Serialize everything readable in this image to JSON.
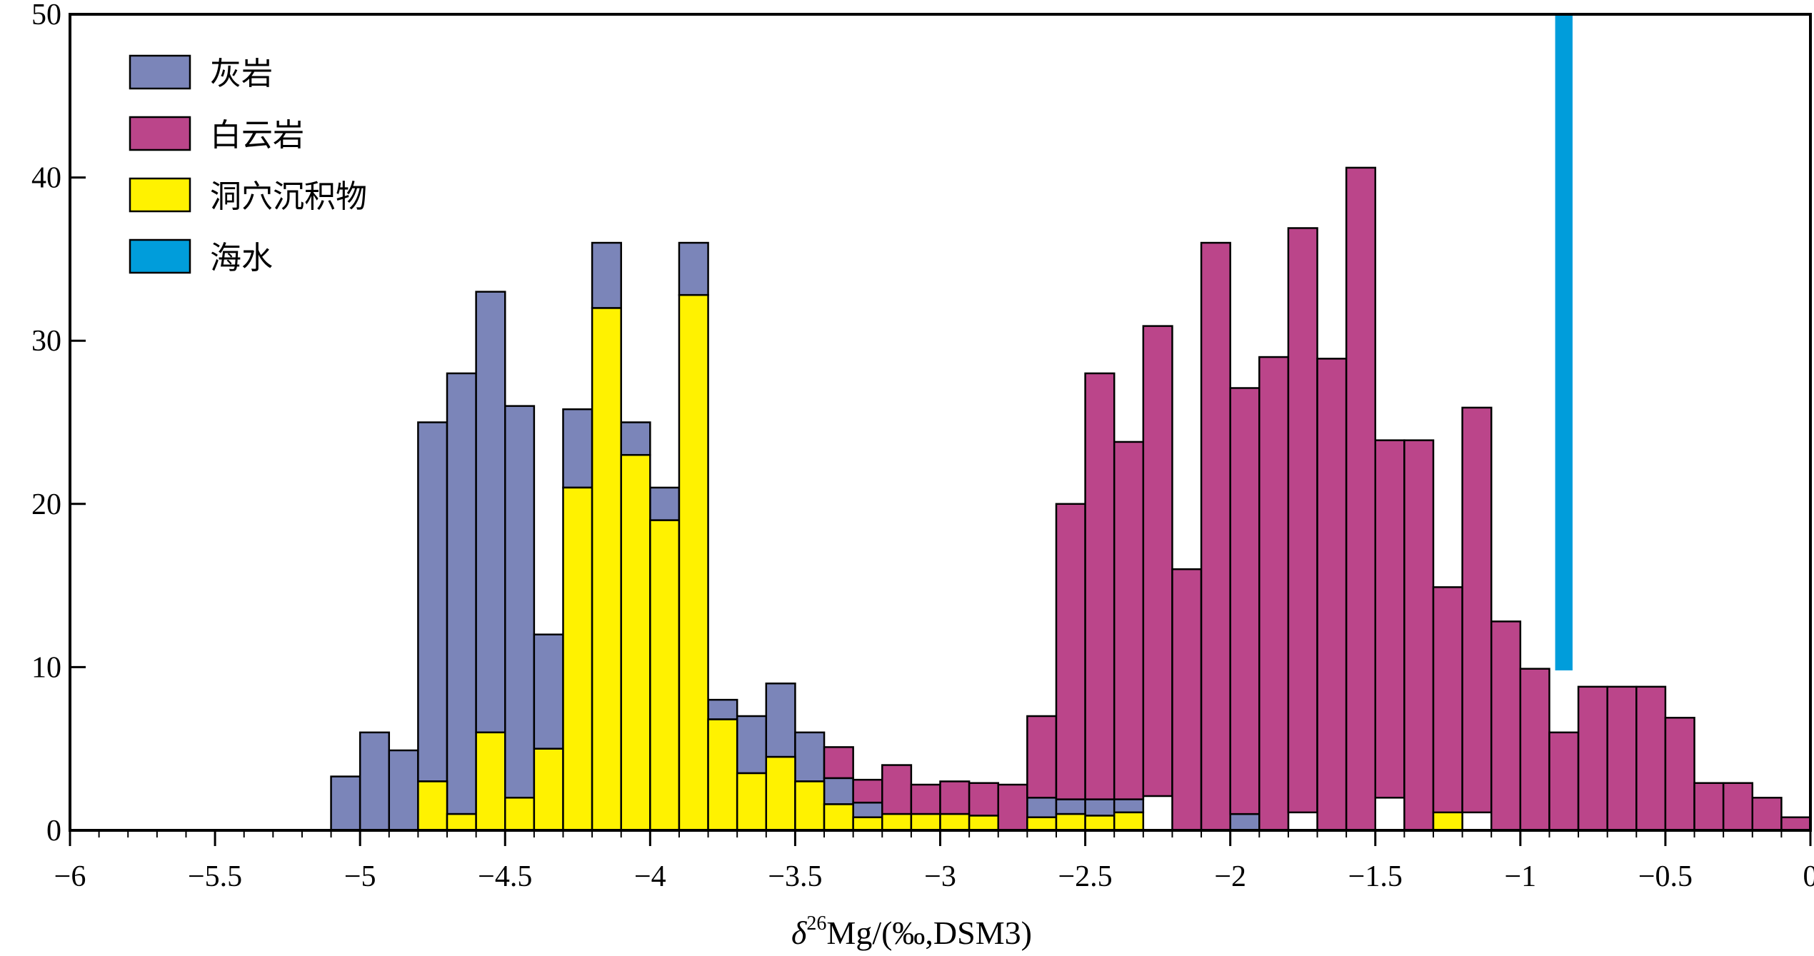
{
  "chart_data": {
    "type": "bar",
    "stacked": true,
    "bin_width": 0.1,
    "xlim": [
      -6,
      0
    ],
    "ylim": [
      0,
      50
    ],
    "x_ticks": [
      -6,
      -5.5,
      -5,
      -4.5,
      -4,
      -3.5,
      -3,
      -2.5,
      -2,
      -1.5,
      -1,
      -0.5,
      0
    ],
    "x_tick_labels": [
      "−6",
      "−5.5",
      "−5",
      "−4.5",
      "−4",
      "−3.5",
      "−3",
      "−2.5",
      "−2",
      "−1.5",
      "−1",
      "−0.5",
      "0"
    ],
    "y_ticks": [
      0,
      10,
      20,
      30,
      40,
      50
    ],
    "y_tick_labels": [
      "0",
      "10",
      "20",
      "30",
      "40",
      "50"
    ],
    "x_axis_title_delta": "δ",
    "x_axis_title_sup": "26",
    "x_axis_title_rest": "Mg/(‰,DSM3)",
    "legend_placement": "top-left",
    "series": [
      {
        "name": "灰岩",
        "color": "#7b85b9",
        "bins": [
          {
            "x0": -5.1,
            "y0": 0,
            "y1": 3.3
          },
          {
            "x0": -5.0,
            "y0": 0,
            "y1": 6
          },
          {
            "x0": -4.9,
            "y0": 0,
            "y1": 4.9
          },
          {
            "x0": -4.8,
            "y0": 3,
            "y1": 25
          },
          {
            "x0": -4.7,
            "y0": 1,
            "y1": 28
          },
          {
            "x0": -4.6,
            "y0": 6,
            "y1": 33
          },
          {
            "x0": -4.5,
            "y0": 2,
            "y1": 26
          },
          {
            "x0": -4.4,
            "y0": 5,
            "y1": 12
          },
          {
            "x0": -4.3,
            "y0": 21,
            "y1": 25.8
          },
          {
            "x0": -4.2,
            "y0": 32,
            "y1": 36
          },
          {
            "x0": -4.1,
            "y0": 23,
            "y1": 25
          },
          {
            "x0": -4.0,
            "y0": 19,
            "y1": 21
          },
          {
            "x0": -3.9,
            "y0": 32.8,
            "y1": 36
          },
          {
            "x0": -3.8,
            "y0": 6.8,
            "y1": 8
          },
          {
            "x0": -3.7,
            "y0": 3.5,
            "y1": 7
          },
          {
            "x0": -3.6,
            "y0": 4.5,
            "y1": 9
          },
          {
            "x0": -3.5,
            "y0": 3,
            "y1": 6
          },
          {
            "x0": -3.4,
            "y0": 1.6,
            "y1": 3.2
          },
          {
            "x0": -3.3,
            "y0": 0.8,
            "y1": 1.7
          },
          {
            "x0": -2.7,
            "y0": 0.8,
            "y1": 2
          },
          {
            "x0": -2.6,
            "y0": 1,
            "y1": 1.9
          },
          {
            "x0": -2.5,
            "y0": 0.9,
            "y1": 1.9
          },
          {
            "x0": -2.4,
            "y0": 1.1,
            "y1": 2.1
          },
          {
            "x0": -2.0,
            "y0": 0,
            "y1": 1
          },
          {
            "x0": -1.9,
            "y0": 0,
            "y1": 1.1
          },
          {
            "x0": -1.6,
            "y0": 0,
            "y1": 2
          }
        ]
      },
      {
        "name": "白云岩",
        "color": "#bb458a",
        "bins": [
          {
            "x0": -3.4,
            "y0": 3.2,
            "y1": 5.1
          },
          {
            "x0": -3.3,
            "y0": 1.7,
            "y1": 3.1
          },
          {
            "x0": -3.2,
            "y0": 1,
            "y1": 4
          },
          {
            "x0": -3.1,
            "y0": 1,
            "y1": 2.8
          },
          {
            "x0": -3.0,
            "y0": 1,
            "y1": 3
          },
          {
            "x0": -2.9,
            "y0": 0.9,
            "y1": 2.9
          },
          {
            "x0": -2.8,
            "y0": 0,
            "y1": 2.8
          },
          {
            "x0": -2.7,
            "y0": 2,
            "y1": 7
          },
          {
            "x0": -2.6,
            "y0": 1.9,
            "y1": 20
          },
          {
            "x0": -2.5,
            "y0": 1.9,
            "y1": 28
          },
          {
            "x0": -2.4,
            "y0": 1.9,
            "y1": 23.8
          },
          {
            "x0": -2.3,
            "y0": 2.1,
            "y1": 30.9
          },
          {
            "x0": -2.2,
            "y0": 0,
            "y1": 16
          },
          {
            "x0": -2.1,
            "y0": 0,
            "y1": 36
          },
          {
            "x0": -2.0,
            "y0": 1,
            "y1": 27.1
          },
          {
            "x0": -1.9,
            "y0": 0,
            "y1": 29
          },
          {
            "x0": -1.8,
            "y0": 1.1,
            "y1": 36.9
          },
          {
            "x0": -1.7,
            "y0": 0,
            "y1": 28.9
          },
          {
            "x0": -1.6,
            "y0": 0,
            "y1": 40.6
          },
          {
            "x0": -1.5,
            "y0": 2,
            "y1": 23.9
          },
          {
            "x0": -1.4,
            "y0": 0,
            "y1": 23.9
          },
          {
            "x0": -1.3,
            "y0": 0,
            "y1": 14.9
          },
          {
            "x0": -1.2,
            "y0": 1.1,
            "y1": 25.9
          },
          {
            "x0": -1.1,
            "y0": 0,
            "y1": 12.8
          },
          {
            "x0": -1.0,
            "y0": 0,
            "y1": 9.9
          },
          {
            "x0": -0.9,
            "y0": 0,
            "y1": 6
          },
          {
            "x0": -0.8,
            "y0": 0,
            "y1": 8.8
          },
          {
            "x0": -0.7,
            "y0": 0,
            "y1": 8.8
          },
          {
            "x0": -0.6,
            "y0": 0,
            "y1": 8.8
          },
          {
            "x0": -0.5,
            "y0": 0,
            "y1": 6.9
          },
          {
            "x0": -0.4,
            "y0": 0,
            "y1": 2.9
          },
          {
            "x0": -0.3,
            "y0": 0,
            "y1": 2.9
          },
          {
            "x0": -0.2,
            "y0": 0,
            "y1": 2
          },
          {
            "x0": -0.1,
            "y0": 0,
            "y1": 0.8
          }
        ]
      },
      {
        "name": "洞穴沉积物",
        "color": "#fff200",
        "bins": [
          {
            "x0": -4.8,
            "y0": 0,
            "y1": 3
          },
          {
            "x0": -4.7,
            "y0": 0,
            "y1": 1
          },
          {
            "x0": -4.6,
            "y0": 0,
            "y1": 6
          },
          {
            "x0": -4.5,
            "y0": 0,
            "y1": 2
          },
          {
            "x0": -4.4,
            "y0": 0,
            "y1": 5
          },
          {
            "x0": -4.3,
            "y0": 0,
            "y1": 21
          },
          {
            "x0": -4.2,
            "y0": 0,
            "y1": 32
          },
          {
            "x0": -4.1,
            "y0": 0,
            "y1": 23
          },
          {
            "x0": -4.0,
            "y0": 0,
            "y1": 19
          },
          {
            "x0": -3.9,
            "y0": 0,
            "y1": 32.8
          },
          {
            "x0": -3.8,
            "y0": 0,
            "y1": 6.8
          },
          {
            "x0": -3.7,
            "y0": 0,
            "y1": 3.5
          },
          {
            "x0": -3.6,
            "y0": 0,
            "y1": 4.5
          },
          {
            "x0": -3.5,
            "y0": 0,
            "y1": 3
          },
          {
            "x0": -3.4,
            "y0": 0,
            "y1": 1.6
          },
          {
            "x0": -3.3,
            "y0": 0,
            "y1": 0.8
          },
          {
            "x0": -3.2,
            "y0": 0,
            "y1": 1
          },
          {
            "x0": -3.1,
            "y0": 0,
            "y1": 1
          },
          {
            "x0": -3.0,
            "y0": 0,
            "y1": 1
          },
          {
            "x0": -2.9,
            "y0": 0,
            "y1": 0.9
          },
          {
            "x0": -2.7,
            "y0": 0,
            "y1": 0.8
          },
          {
            "x0": -2.6,
            "y0": 0,
            "y1": 1
          },
          {
            "x0": -2.5,
            "y0": 0,
            "y1": 0.9
          },
          {
            "x0": -2.4,
            "y0": 0,
            "y1": 1.1
          },
          {
            "x0": -1.3,
            "y0": 0,
            "y1": 1.1
          }
        ]
      },
      {
        "name": "海水",
        "color": "#009ddb",
        "bins": [
          {
            "x0": -0.88,
            "x1": -0.82,
            "y0": 9.8,
            "y1": 50
          }
        ]
      }
    ]
  }
}
